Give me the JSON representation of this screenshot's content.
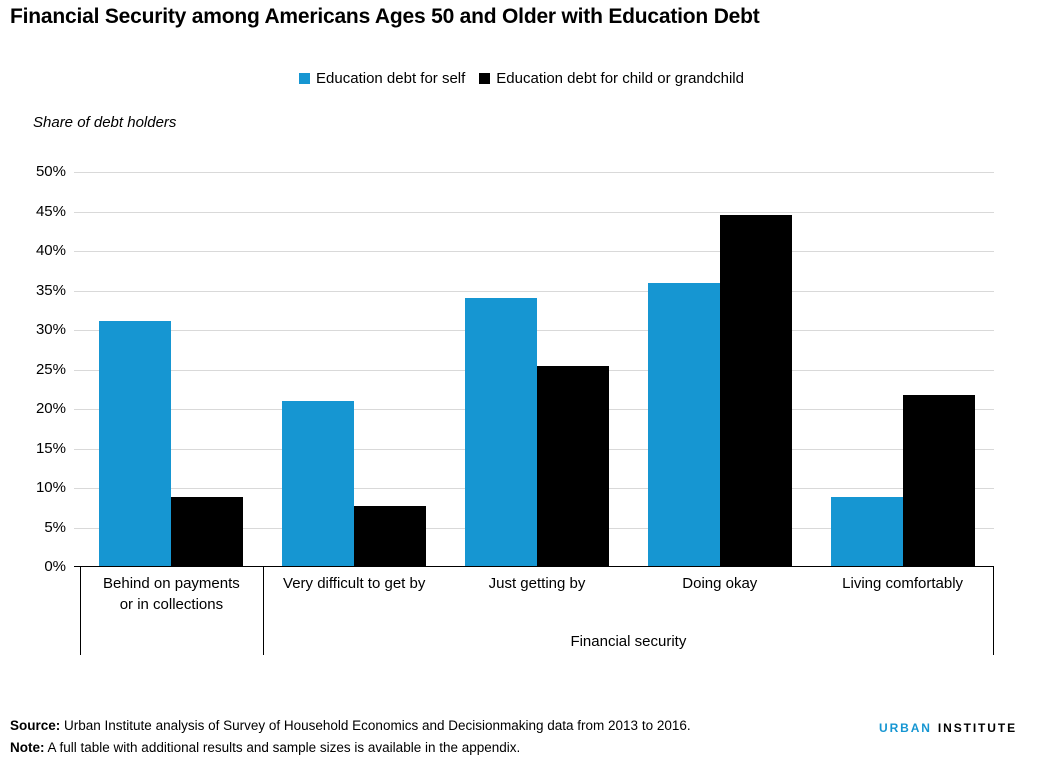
{
  "chart_data": {
    "type": "bar",
    "title": "Financial Security among Americans Ages 50 and Older with Education Debt",
    "ylabel": "Share of debt holders",
    "xlabel": "Financial security",
    "categories": [
      "Behind on payments\nor in collections",
      "Very difficult to get by",
      "Just getting by",
      "Doing okay",
      "Living comfortably"
    ],
    "series": [
      {
        "key": "self",
        "name": "Education debt for self",
        "color": "#1696d2",
        "values": [
          31.1,
          21.0,
          34.0,
          35.9,
          8.8
        ]
      },
      {
        "key": "child",
        "name": "Education debt for child or grandchild",
        "color": "#000000",
        "values": [
          8.9,
          7.7,
          25.5,
          44.6,
          21.8
        ]
      }
    ],
    "ylim": [
      0,
      50
    ],
    "ytick_step": 5,
    "ytick_suffix": "%",
    "grid": true,
    "legend_position": "top-center",
    "xlabel_spans_categories": [
      2,
      5
    ]
  },
  "footer": {
    "source_label": "Source:",
    "source_text": " Urban Institute analysis of Survey of Household Economics and Decisionmaking data from 2013 to 2016.",
    "note_label": "Note:",
    "note_text": " A full table with additional results and sample sizes is available in the appendix.",
    "logo": {
      "urban": "URBAN",
      "institute": "INSTITUTE",
      "urban_color": "#1696d2",
      "institute_color": "#000000"
    }
  }
}
